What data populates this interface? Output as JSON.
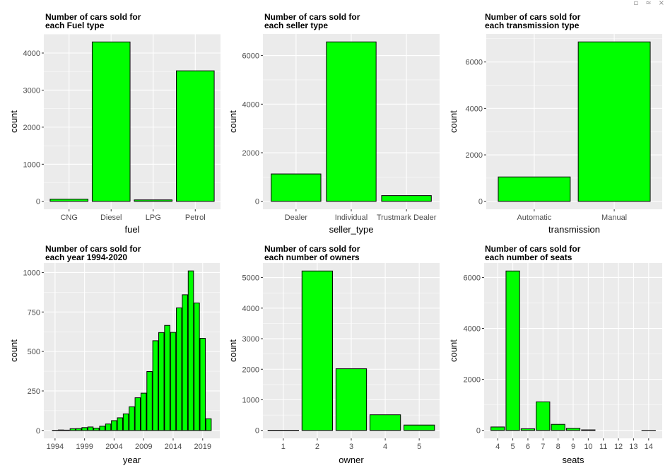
{
  "window_controls": {
    "restore_icon": "restore-icon",
    "collapse_icon": "collapse-icon",
    "close_icon": "close-icon",
    "restore_glyph": "▫",
    "collapse_glyph": "≈",
    "close_glyph": "×"
  },
  "style": {
    "panel_bg": "#ebebeb",
    "grid_color": "#ffffff",
    "bar_fill": "#00ff00",
    "bar_stroke": "#000000"
  },
  "chart_data": [
    {
      "type": "bar",
      "title_lines": [
        "Number of cars sold for",
        "each Fuel type"
      ],
      "xlabel": "fuel",
      "ylabel": "count",
      "categories": [
        "CNG",
        "Diesel",
        "LPG",
        "Petrol"
      ],
      "values": [
        57,
        4299,
        38,
        3520
      ],
      "ylim": [
        -215,
        4515
      ],
      "yticks": [
        0,
        1000,
        2000,
        3000,
        4000
      ],
      "grid": true
    },
    {
      "type": "bar",
      "title_lines": [
        "Number of cars sold for",
        "each seller type"
      ],
      "xlabel": "seller_type",
      "ylabel": "count",
      "categories": [
        "Dealer",
        "Individual",
        "Trustmark Dealer"
      ],
      "values": [
        1126,
        6563,
        236
      ],
      "ylim": [
        -328,
        6891
      ],
      "yticks": [
        0,
        2000,
        4000,
        6000
      ],
      "grid": true
    },
    {
      "type": "bar",
      "title_lines": [
        "Number of cars sold for",
        "each transmission type"
      ],
      "xlabel": "transmission",
      "ylabel": "count",
      "categories": [
        "Automatic",
        "Manual"
      ],
      "values": [
        1050,
        6865
      ],
      "ylim": [
        -343,
        7208
      ],
      "yticks": [
        0,
        2000,
        4000,
        6000
      ],
      "grid": true
    },
    {
      "type": "bar",
      "title_lines": [
        "Number of cars sold for",
        "each year 1994-2020"
      ],
      "xlabel": "year",
      "ylabel": "count",
      "x": [
        1994,
        1995,
        1996,
        1997,
        1998,
        1999,
        2000,
        2001,
        2002,
        2003,
        2004,
        2005,
        2006,
        2007,
        2008,
        2009,
        2010,
        2011,
        2012,
        2013,
        2014,
        2015,
        2016,
        2017,
        2018,
        2019,
        2020
      ],
      "values": [
        1,
        3,
        2,
        11,
        12,
        18,
        22,
        15,
        27,
        41,
        62,
        80,
        105,
        150,
        207,
        236,
        373,
        568,
        620,
        665,
        621,
        776,
        859,
        1010,
        807,
        583,
        74
      ],
      "ylim": [
        -50,
        1060
      ],
      "xlim": [
        1992.1,
        2021.9
      ],
      "xticks": [
        1994,
        1999,
        2004,
        2009,
        2014,
        2019
      ],
      "yticks": [
        0,
        250,
        500,
        750,
        1000
      ],
      "grid": true
    },
    {
      "type": "bar",
      "title_lines": [
        "Number of cars sold for",
        "each number of owners"
      ],
      "xlabel": "owner",
      "ylabel": "count",
      "categories": [
        "1",
        "2",
        "3",
        "4",
        "5"
      ],
      "values": [
        5,
        5215,
        2016,
        510,
        174
      ],
      "ylim": [
        -261,
        5476
      ],
      "yticks": [
        0,
        1000,
        2000,
        3000,
        4000,
        5000
      ],
      "grid": true
    },
    {
      "type": "bar",
      "title_lines": [
        "Number of cars sold for",
        "each number of seats"
      ],
      "xlabel": "seats",
      "ylabel": "count",
      "x": [
        4,
        5,
        6,
        7,
        8,
        9,
        10,
        11,
        12,
        13,
        14
      ],
      "xticks": [
        4,
        5,
        6,
        7,
        8,
        9,
        10,
        11,
        12,
        13,
        14
      ],
      "values": [
        133,
        6254,
        62,
        1120,
        236,
        80,
        19,
        0,
        0,
        0,
        1
      ],
      "ylim": [
        -313,
        6567
      ],
      "xlim": [
        3.1,
        14.9
      ],
      "yticks": [
        0,
        2000,
        4000,
        6000
      ],
      "grid": true
    }
  ]
}
